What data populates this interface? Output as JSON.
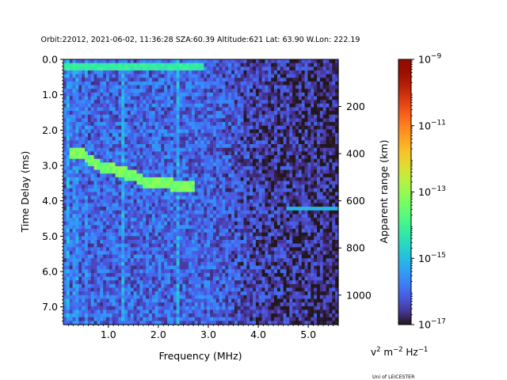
{
  "chart_data": {
    "type": "heatmap",
    "title": "Orbit:22012, 2021-06-02, 11:36:28 SZA:60.39 Altitude:621 Lat: 63.90 W.Lon: 222.19",
    "xlabel": "Frequency (MHz)",
    "ylabel": "Time Delay (ms)",
    "y2label": "Apparent range (km)",
    "xlim": [
      0.1,
      5.6
    ],
    "ylim": [
      7.5,
      0.0
    ],
    "x_ticks": [
      1.0,
      2.0,
      3.0,
      4.0,
      5.0
    ],
    "x_tick_labels": [
      "1.0",
      "2.0",
      "3.0",
      "4.0",
      "5.0"
    ],
    "y_ticks": [
      0.0,
      1.0,
      2.0,
      3.0,
      4.0,
      5.0,
      6.0,
      7.0
    ],
    "y_tick_labels": [
      "0.0",
      "1.0",
      "2.0",
      "3.0",
      "4.0",
      "5.0",
      "6.0",
      "7.0"
    ],
    "y2_ticks_km": [
      200,
      400,
      600,
      800,
      1000
    ],
    "y2_tick_labels": [
      "200",
      "400",
      "600",
      "800",
      "1000"
    ],
    "y2_km_per_ms": 150,
    "colorbar": {
      "label_base": "v",
      "label_exp1": "2",
      "label_mid": " m",
      "label_exp2": "−2",
      "label_end": " Hz",
      "label_exp3": "−1",
      "log_range": [
        -17,
        -9
      ],
      "ticks": [
        -9,
        -11,
        -13,
        -15,
        -17
      ],
      "tick_base": "10",
      "tick_exponents": [
        "−9",
        "−11",
        "−13",
        "−15",
        "−17"
      ],
      "colormap": "turbo"
    },
    "features": {
      "background_falloff_mhz": [
        3.0,
        4.0
      ],
      "bright_lines_mhz": [
        0.2,
        1.3,
        2.4
      ],
      "surface_echo_ms": 0.2,
      "trace_points": [
        [
          0.25,
          2.7
        ],
        [
          0.5,
          2.7
        ],
        [
          0.7,
          2.9
        ],
        [
          0.9,
          3.1
        ],
        [
          1.1,
          3.1
        ],
        [
          1.3,
          3.2
        ],
        [
          1.5,
          3.3
        ],
        [
          1.7,
          3.45
        ],
        [
          2.0,
          3.5
        ],
        [
          2.3,
          3.55
        ],
        [
          2.7,
          3.55
        ]
      ],
      "late_echo": {
        "x_range": [
          4.55,
          5.6
        ],
        "ms": 4.25
      }
    }
  },
  "footer": {
    "credit": "Uni of LEICESTER"
  }
}
